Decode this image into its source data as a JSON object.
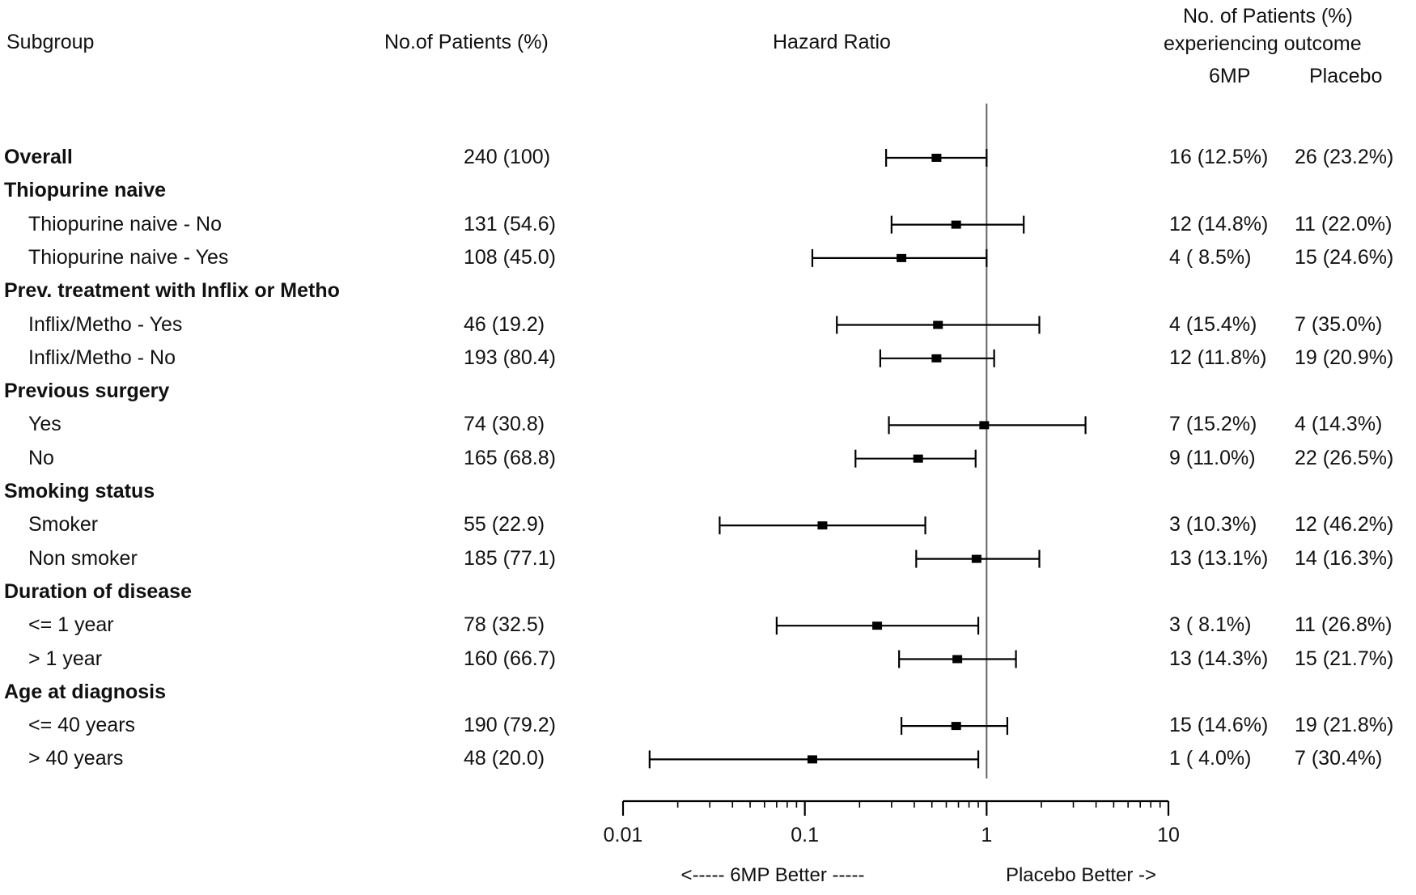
{
  "headers": {
    "subgroup": "Subgroup",
    "patients": "No.of Patients (%)",
    "hazard": "Hazard Ratio",
    "outcome_line1": "No. of Patients (%)",
    "outcome_line2": "experiencing outcome",
    "col_6mp": "6MP",
    "col_placebo": "Placebo"
  },
  "rows": [
    {
      "label": "Overall",
      "bold": true,
      "n": "240 (100)",
      "mp": "16 (12.5%)",
      "placebo": "26 (23.2%)"
    },
    {
      "label": "Thiopurine naive",
      "bold": true
    },
    {
      "label": "Thiopurine naive - No",
      "bold": false,
      "n": "131 (54.6)",
      "mp": "12 (14.8%)",
      "placebo": "11 (22.0%)"
    },
    {
      "label": "Thiopurine naive - Yes",
      "bold": false,
      "n": "108 (45.0)",
      "mp": "4 ( 8.5%)",
      "placebo": "15 (24.6%)"
    },
    {
      "label": "Prev. treatment with Inflix or Metho",
      "bold": true
    },
    {
      "label": "Inflix/Metho - Yes",
      "bold": false,
      "n": "46 (19.2)",
      "mp": "4 (15.4%)",
      "placebo": "7 (35.0%)"
    },
    {
      "label": "Inflix/Metho - No",
      "bold": false,
      "n": "193 (80.4)",
      "mp": "12 (11.8%)",
      "placebo": "19 (20.9%)"
    },
    {
      "label": "Previous surgery",
      "bold": true
    },
    {
      "label": "Yes",
      "bold": false,
      "n": "74 (30.8)",
      "mp": "7 (15.2%)",
      "placebo": "4 (14.3%)"
    },
    {
      "label": "No",
      "bold": false,
      "n": "165 (68.8)",
      "mp": "9 (11.0%)",
      "placebo": "22 (26.5%)"
    },
    {
      "label": "Smoking status",
      "bold": true
    },
    {
      "label": "Smoker",
      "bold": false,
      "n": "55 (22.9)",
      "mp": "3 (10.3%)",
      "placebo": "12 (46.2%)"
    },
    {
      "label": "Non smoker",
      "bold": false,
      "n": "185 (77.1)",
      "mp": "13 (13.1%)",
      "placebo": "14 (16.3%)"
    },
    {
      "label": "Duration of disease",
      "bold": true
    },
    {
      "label": "<= 1 year",
      "bold": false,
      "n": "78 (32.5)",
      "mp": "3 ( 8.1%)",
      "placebo": "11 (26.8%)"
    },
    {
      "label": "> 1 year",
      "bold": false,
      "n": "160 (66.7)",
      "mp": "13 (14.3%)",
      "placebo": "15 (21.7%)"
    },
    {
      "label": "Age at diagnosis",
      "bold": true
    },
    {
      "label": "<= 40 years",
      "bold": false,
      "n": "190 (79.2)",
      "mp": "15 (14.6%)",
      "placebo": "19 (21.8%)"
    },
    {
      "label": "> 40 years",
      "bold": false,
      "n": "48 (20.0)",
      "mp": "1 ( 4.0%)",
      "placebo": "7 (30.4%)"
    }
  ],
  "chart_data": {
    "type": "forest",
    "x_scale": "log",
    "xlim": [
      0.01,
      10
    ],
    "reference_line": 1,
    "x_ticks": [
      0.01,
      0.1,
      1,
      10
    ],
    "x_tick_labels": [
      "0.01",
      "0.1",
      "1",
      "10"
    ],
    "x_left_label": "<----- 6MP  Better -----",
    "x_right_label": "Placebo  Better ->",
    "series": [
      {
        "row": "Overall",
        "hr": 0.53,
        "lo": 0.28,
        "hi": 1.0
      },
      {
        "row": "Thiopurine naive - No",
        "hr": 0.68,
        "lo": 0.3,
        "hi": 1.6
      },
      {
        "row": "Thiopurine naive - Yes",
        "hr": 0.34,
        "lo": 0.11,
        "hi": 1.0
      },
      {
        "row": "Inflix/Metho - Yes",
        "hr": 0.54,
        "lo": 0.15,
        "hi": 1.95
      },
      {
        "row": "Inflix/Metho - No",
        "hr": 0.53,
        "lo": 0.26,
        "hi": 1.1
      },
      {
        "row": "Yes",
        "hr": 0.97,
        "lo": 0.29,
        "hi": 3.5
      },
      {
        "row": "No",
        "hr": 0.42,
        "lo": 0.19,
        "hi": 0.87
      },
      {
        "row": "Smoker",
        "hr": 0.125,
        "lo": 0.034,
        "hi": 0.46
      },
      {
        "row": "Non smoker",
        "hr": 0.88,
        "lo": 0.41,
        "hi": 1.95
      },
      {
        "row": "<= 1 year",
        "hr": 0.25,
        "lo": 0.07,
        "hi": 0.9
      },
      {
        "row": "> 1 year",
        "hr": 0.69,
        "lo": 0.33,
        "hi": 1.45
      },
      {
        "row": "<= 40 years",
        "hr": 0.68,
        "lo": 0.34,
        "hi": 1.3
      },
      {
        "row": "> 40 years",
        "hr": 0.11,
        "lo": 0.014,
        "hi": 0.9
      }
    ]
  }
}
